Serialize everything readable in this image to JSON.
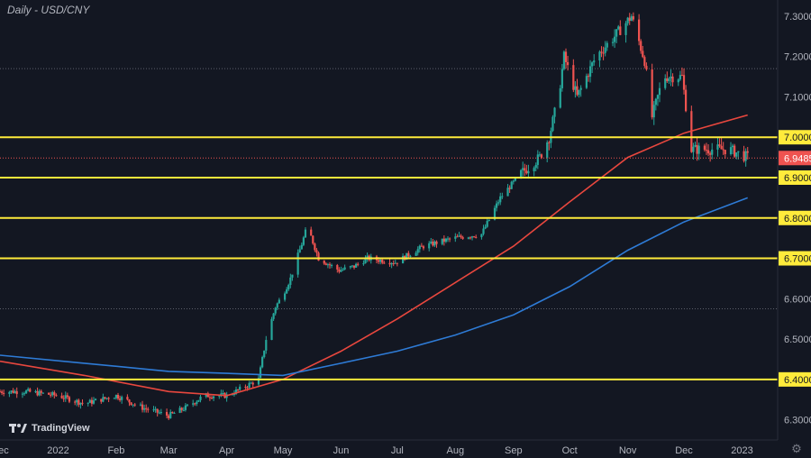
{
  "header": {
    "title": "Daily - USD/CNY"
  },
  "watermark": {
    "label": "TradingView"
  },
  "colors": {
    "background": "#131722",
    "up": "#26a69a",
    "down": "#ef5350",
    "ma_fast": "#e8473e",
    "ma_slow": "#2e7bd6",
    "levels": "#ffeb3b",
    "price_badge": "#ef5350",
    "level_badge": "#ffeb3b",
    "axis_text": "#b2b5be"
  },
  "chart_data": {
    "type": "candlestick",
    "title": "Daily - USD/CNY",
    "xlim": [
      "2021-12-01",
      "2023-01-20"
    ],
    "ylim": [
      6.25,
      7.34
    ],
    "x_ticks": [
      {
        "date": "2021-12-01",
        "label": "Dec"
      },
      {
        "date": "2022-01-01",
        "label": "2022"
      },
      {
        "date": "2022-02-01",
        "label": "Feb"
      },
      {
        "date": "2022-03-01",
        "label": "Mar"
      },
      {
        "date": "2022-04-01",
        "label": "Apr"
      },
      {
        "date": "2022-05-01",
        "label": "May"
      },
      {
        "date": "2022-06-01",
        "label": "Jun"
      },
      {
        "date": "2022-07-01",
        "label": "Jul"
      },
      {
        "date": "2022-08-01",
        "label": "Aug"
      },
      {
        "date": "2022-09-01",
        "label": "Sep"
      },
      {
        "date": "2022-10-01",
        "label": "Oct"
      },
      {
        "date": "2022-11-01",
        "label": "Nov"
      },
      {
        "date": "2022-12-01",
        "label": "Dec"
      },
      {
        "date": "2023-01-01",
        "label": "2023"
      }
    ],
    "y_ticks": [
      "6.3000",
      "6.4000",
      "6.5000",
      "6.6000",
      "6.7000",
      "6.8000",
      "6.9000",
      "7.0000",
      "7.1000",
      "7.2000",
      "7.3000"
    ],
    "highlighted_levels": [
      {
        "value": 6.4,
        "label": "6.4000"
      },
      {
        "value": 6.7,
        "label": "6.7000"
      },
      {
        "value": 6.8,
        "label": "6.8000"
      },
      {
        "value": 6.9,
        "label": "6.9000"
      },
      {
        "value": 7.0,
        "label": "7.0000"
      }
    ],
    "last_price": {
      "value": 6.9485,
      "label": "6.9485"
    },
    "grid_levels": [
      6.575,
      7.17
    ],
    "price_path": [
      [
        "2021-12-01",
        6.37
      ],
      [
        "2021-12-15",
        6.37
      ],
      [
        "2022-01-01",
        6.36
      ],
      [
        "2022-01-15",
        6.34
      ],
      [
        "2022-02-01",
        6.36
      ],
      [
        "2022-02-15",
        6.33
      ],
      [
        "2022-03-01",
        6.31
      ],
      [
        "2022-03-10",
        6.33
      ],
      [
        "2022-03-20",
        6.36
      ],
      [
        "2022-04-01",
        6.36
      ],
      [
        "2022-04-10",
        6.38
      ],
      [
        "2022-04-18",
        6.4
      ],
      [
        "2022-04-22",
        6.5
      ],
      [
        "2022-04-27",
        6.58
      ],
      [
        "2022-05-01",
        6.61
      ],
      [
        "2022-05-05",
        6.65
      ],
      [
        "2022-05-12",
        6.75
      ],
      [
        "2022-05-14",
        6.78
      ],
      [
        "2022-05-20",
        6.7
      ],
      [
        "2022-05-31",
        6.67
      ],
      [
        "2022-06-08",
        6.68
      ],
      [
        "2022-06-15",
        6.7
      ],
      [
        "2022-06-30",
        6.69
      ],
      [
        "2022-07-15",
        6.73
      ],
      [
        "2022-07-31",
        6.75
      ],
      [
        "2022-08-15",
        6.76
      ],
      [
        "2022-08-25",
        6.85
      ],
      [
        "2022-09-05",
        6.91
      ],
      [
        "2022-09-15",
        6.95
      ],
      [
        "2022-09-20",
        7.0
      ],
      [
        "2022-09-25",
        7.1
      ],
      [
        "2022-09-28",
        7.2
      ],
      [
        "2022-10-05",
        7.1
      ],
      [
        "2022-10-15",
        7.2
      ],
      [
        "2022-10-25",
        7.25
      ],
      [
        "2022-11-03",
        7.3
      ],
      [
        "2022-11-10",
        7.19
      ],
      [
        "2022-11-14",
        7.05
      ],
      [
        "2022-11-20",
        7.15
      ],
      [
        "2022-11-30",
        7.15
      ],
      [
        "2022-12-05",
        6.97
      ],
      [
        "2022-12-15",
        6.97
      ],
      [
        "2022-12-25",
        6.97
      ],
      [
        "2023-01-04",
        6.95
      ]
    ],
    "series": [
      {
        "type": "line",
        "color": "#e8473e",
        "values": [
          [
            "2021-12-01",
            6.445
          ],
          [
            "2022-01-15",
            6.41
          ],
          [
            "2022-03-01",
            6.37
          ],
          [
            "2022-04-01",
            6.36
          ],
          [
            "2022-05-01",
            6.4
          ],
          [
            "2022-06-01",
            6.47
          ],
          [
            "2022-07-01",
            6.55
          ],
          [
            "2022-08-01",
            6.64
          ],
          [
            "2022-09-01",
            6.73
          ],
          [
            "2022-10-01",
            6.84
          ],
          [
            "2022-11-01",
            6.95
          ],
          [
            "2022-12-01",
            7.01
          ],
          [
            "2023-01-04",
            7.055
          ]
        ]
      },
      {
        "type": "line",
        "color": "#2e7bd6",
        "values": [
          [
            "2021-12-01",
            6.46
          ],
          [
            "2022-01-15",
            6.44
          ],
          [
            "2022-03-01",
            6.42
          ],
          [
            "2022-04-01",
            6.415
          ],
          [
            "2022-05-01",
            6.41
          ],
          [
            "2022-06-01",
            6.44
          ],
          [
            "2022-07-01",
            6.47
          ],
          [
            "2022-08-01",
            6.51
          ],
          [
            "2022-09-01",
            6.56
          ],
          [
            "2022-10-01",
            6.63
          ],
          [
            "2022-11-01",
            6.72
          ],
          [
            "2022-12-01",
            6.79
          ],
          [
            "2023-01-04",
            6.85
          ]
        ]
      }
    ]
  }
}
